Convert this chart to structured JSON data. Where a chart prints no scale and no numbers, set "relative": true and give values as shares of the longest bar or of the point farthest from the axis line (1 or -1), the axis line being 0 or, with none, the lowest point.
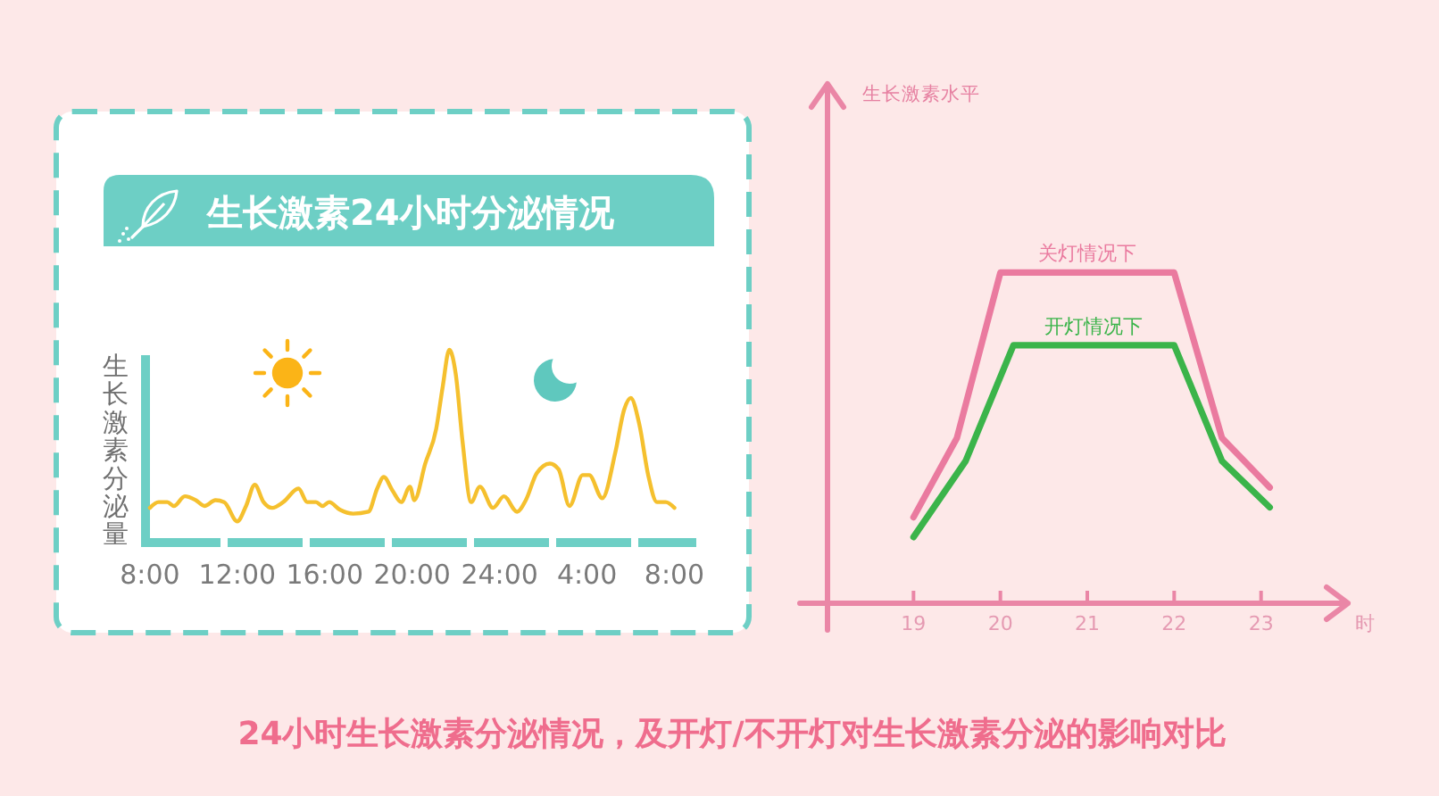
{
  "chart_data": [
    {
      "type": "line",
      "title": "生长激素24小时分泌情况",
      "ylabel": "生长激素分泌量",
      "relative": true,
      "xlim": [
        "2000-01-01T07:48",
        "2000-01-02T09:00"
      ],
      "xticks": [
        {
          "value": "2000-01-01T08:00",
          "label": "8:00"
        },
        {
          "value": "2000-01-01T12:00",
          "label": "12:00"
        },
        {
          "value": "2000-01-01T16:00",
          "label": "16:00"
        },
        {
          "value": "2000-01-01T20:00",
          "label": "20:00"
        },
        {
          "value": "2000-01-02T00:00",
          "label": "24:00"
        },
        {
          "value": "2000-01-02T04:00",
          "label": "4:00"
        },
        {
          "value": "2000-01-02T08:00",
          "label": "8:00"
        }
      ],
      "color": "#f5c02e",
      "x": [
        "2000-01-01T08:00",
        "2000-01-01T08:24",
        "2000-01-01T08:48",
        "2000-01-01T09:06",
        "2000-01-01T09:36",
        "2000-01-01T10:06",
        "2000-01-01T10:30",
        "2000-01-01T11:00",
        "2000-01-01T11:24",
        "2000-01-01T12:00",
        "2000-01-01T12:24",
        "2000-01-01T12:48",
        "2000-01-01T13:12",
        "2000-01-01T13:36",
        "2000-01-01T14:06",
        "2000-01-01T14:48",
        "2000-01-01T15:12",
        "2000-01-01T15:36",
        "2000-01-01T15:54",
        "2000-01-01T16:12",
        "2000-01-01T16:42",
        "2000-01-01T17:18",
        "2000-01-01T18:00",
        "2000-01-01T18:24",
        "2000-01-01T18:42",
        "2000-01-01T19:06",
        "2000-01-01T19:30",
        "2000-01-01T19:54",
        "2000-01-01T20:06",
        "2000-01-01T20:36",
        "2000-01-01T21:06",
        "2000-01-01T21:24",
        "2000-01-01T21:42",
        "2000-01-01T22:00",
        "2000-01-01T22:18",
        "2000-01-01T22:42",
        "2000-01-01T23:06",
        "2000-01-01T23:42",
        "2000-01-02T00:12",
        "2000-01-02T00:48",
        "2000-01-02T01:12",
        "2000-01-02T01:42",
        "2000-01-02T02:18",
        "2000-01-02T02:42",
        "2000-01-02T03:12",
        "2000-01-02T03:48",
        "2000-01-02T04:06",
        "2000-01-02T04:42",
        "2000-01-02T05:18",
        "2000-01-02T05:42",
        "2000-01-02T06:00",
        "2000-01-02T06:24",
        "2000-01-02T06:48",
        "2000-01-02T07:12",
        "2000-01-02T07:36",
        "2000-01-02T08:00"
      ],
      "values": [
        0.18,
        0.21,
        0.21,
        0.19,
        0.24,
        0.22,
        0.19,
        0.22,
        0.21,
        0.11,
        0.19,
        0.3,
        0.21,
        0.18,
        0.21,
        0.28,
        0.21,
        0.21,
        0.19,
        0.21,
        0.17,
        0.15,
        0.16,
        0.28,
        0.34,
        0.27,
        0.21,
        0.29,
        0.22,
        0.41,
        0.59,
        0.81,
        1,
        0.87,
        0.53,
        0.21,
        0.29,
        0.18,
        0.24,
        0.16,
        0.22,
        0.36,
        0.41,
        0.38,
        0.19,
        0.35,
        0.35,
        0.23,
        0.47,
        0.69,
        0.75,
        0.61,
        0.35,
        0.21,
        0.21,
        0.18
      ]
    },
    {
      "type": "line",
      "xlabel": "时",
      "ylabel": "生长激素水平",
      "relative": true,
      "xlim": [
        18,
        24
      ],
      "xticks": [
        19,
        20,
        21,
        22,
        23
      ],
      "series": [
        {
          "name": "关灯情况下",
          "color": "#ea7a9f",
          "x": [
            19,
            19.5,
            20,
            22,
            22.55,
            23.1
          ],
          "values": [
            0.26,
            0.5,
            1,
            1,
            0.5,
            0.35
          ]
        },
        {
          "name": "开灯情况下",
          "color": "#3bb44a",
          "x": [
            19,
            19.6,
            20.15,
            22,
            22.55,
            23.1
          ],
          "values": [
            0.2,
            0.43,
            0.78,
            0.78,
            0.43,
            0.29
          ]
        }
      ],
      "annotations": [
        "24小时生长激素分泌情况，及开灯/不开灯对生长激素分泌的影响对比"
      ]
    }
  ]
}
